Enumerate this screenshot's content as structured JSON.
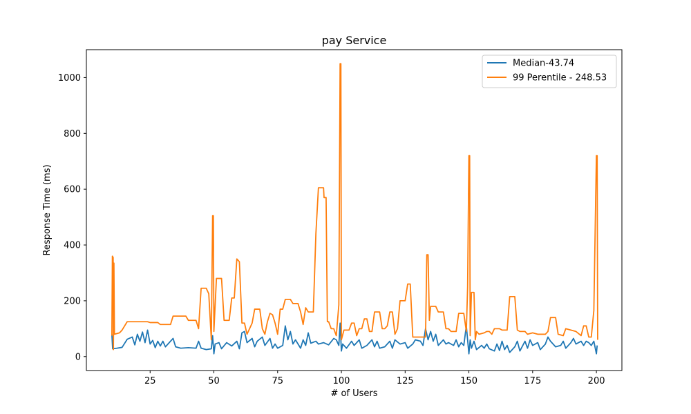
{
  "chart_data": {
    "type": "line",
    "title": "pay Service",
    "xlabel": "# of Users",
    "ylabel": "Response Time (ms)",
    "xlim": [
      0,
      210
    ],
    "ylim": [
      -50,
      1100
    ],
    "xticks": [
      25,
      50,
      75,
      100,
      125,
      150,
      175,
      200
    ],
    "yticks": [
      0,
      200,
      400,
      600,
      800,
      1000
    ],
    "legend_position": "top-right",
    "grid": false,
    "series": [
      {
        "name": "Median-43.74",
        "color": "#1f77b4",
        "points": [
          [
            10,
            80
          ],
          [
            10.3,
            28
          ],
          [
            12,
            30
          ],
          [
            14,
            33
          ],
          [
            16,
            62
          ],
          [
            18,
            70
          ],
          [
            19,
            42
          ],
          [
            20,
            80
          ],
          [
            21,
            55
          ],
          [
            22,
            88
          ],
          [
            23,
            50
          ],
          [
            24,
            95
          ],
          [
            25,
            45
          ],
          [
            26,
            58
          ],
          [
            27,
            32
          ],
          [
            28,
            55
          ],
          [
            29,
            38
          ],
          [
            30,
            55
          ],
          [
            31,
            35
          ],
          [
            33,
            55
          ],
          [
            34,
            65
          ],
          [
            35,
            35
          ],
          [
            37,
            30
          ],
          [
            40,
            32
          ],
          [
            43,
            30
          ],
          [
            44,
            55
          ],
          [
            45,
            30
          ],
          [
            47,
            25
          ],
          [
            49,
            28
          ],
          [
            49.5,
            75
          ],
          [
            50,
            10
          ],
          [
            50.5,
            45
          ],
          [
            52,
            50
          ],
          [
            53,
            28
          ],
          [
            55,
            50
          ],
          [
            57,
            38
          ],
          [
            59,
            55
          ],
          [
            60,
            28
          ],
          [
            61,
            85
          ],
          [
            62,
            90
          ],
          [
            63,
            50
          ],
          [
            65,
            65
          ],
          [
            66,
            35
          ],
          [
            67,
            55
          ],
          [
            69,
            70
          ],
          [
            70,
            40
          ],
          [
            72,
            65
          ],
          [
            73,
            30
          ],
          [
            74,
            45
          ],
          [
            75,
            30
          ],
          [
            77,
            40
          ],
          [
            78,
            110
          ],
          [
            79,
            60
          ],
          [
            80,
            90
          ],
          [
            81,
            45
          ],
          [
            82,
            60
          ],
          [
            84,
            30
          ],
          [
            85,
            60
          ],
          [
            86,
            40
          ],
          [
            87,
            85
          ],
          [
            88,
            48
          ],
          [
            90,
            55
          ],
          [
            91,
            45
          ],
          [
            93,
            50
          ],
          [
            95,
            42
          ],
          [
            97,
            65
          ],
          [
            98,
            60
          ],
          [
            99,
            40
          ],
          [
            99.5,
            120
          ],
          [
            100,
            20
          ],
          [
            100.5,
            45
          ],
          [
            102,
            30
          ],
          [
            104,
            55
          ],
          [
            105,
            40
          ],
          [
            107,
            60
          ],
          [
            108,
            30
          ],
          [
            110,
            40
          ],
          [
            112,
            60
          ],
          [
            113,
            35
          ],
          [
            114,
            55
          ],
          [
            115,
            30
          ],
          [
            117,
            35
          ],
          [
            119,
            55
          ],
          [
            120,
            30
          ],
          [
            121,
            60
          ],
          [
            123,
            45
          ],
          [
            125,
            50
          ],
          [
            126,
            30
          ],
          [
            128,
            45
          ],
          [
            129,
            60
          ],
          [
            131,
            55
          ],
          [
            132,
            40
          ],
          [
            133,
            100
          ],
          [
            134,
            60
          ],
          [
            135,
            90
          ],
          [
            136,
            55
          ],
          [
            137,
            80
          ],
          [
            138,
            40
          ],
          [
            140,
            60
          ],
          [
            141,
            45
          ],
          [
            142,
            50
          ],
          [
            144,
            40
          ],
          [
            145,
            60
          ],
          [
            146,
            35
          ],
          [
            147,
            50
          ],
          [
            148,
            40
          ],
          [
            149,
            110
          ],
          [
            150,
            10
          ],
          [
            150.5,
            60
          ],
          [
            151,
            30
          ],
          [
            152,
            55
          ],
          [
            153,
            25
          ],
          [
            155,
            40
          ],
          [
            156,
            30
          ],
          [
            157,
            45
          ],
          [
            158,
            28
          ],
          [
            160,
            20
          ],
          [
            161,
            45
          ],
          [
            162,
            22
          ],
          [
            163,
            55
          ],
          [
            164,
            25
          ],
          [
            165,
            40
          ],
          [
            166,
            15
          ],
          [
            168,
            35
          ],
          [
            169,
            55
          ],
          [
            170,
            20
          ],
          [
            172,
            55
          ],
          [
            173,
            30
          ],
          [
            174,
            60
          ],
          [
            175,
            40
          ],
          [
            177,
            50
          ],
          [
            178,
            25
          ],
          [
            180,
            45
          ],
          [
            181,
            70
          ],
          [
            182,
            55
          ],
          [
            184,
            35
          ],
          [
            186,
            40
          ],
          [
            187,
            55
          ],
          [
            188,
            30
          ],
          [
            190,
            50
          ],
          [
            191,
            65
          ],
          [
            192,
            45
          ],
          [
            194,
            55
          ],
          [
            195,
            40
          ],
          [
            196,
            55
          ],
          [
            197,
            50
          ],
          [
            198,
            40
          ],
          [
            199,
            55
          ],
          [
            200,
            10
          ],
          [
            200.3,
            40
          ]
        ]
      },
      {
        "name": "99 Perentile - 248.53",
        "color": "#ff7f0e",
        "points": [
          [
            10,
            75
          ],
          [
            10.2,
            360
          ],
          [
            10.5,
            355
          ],
          [
            10.6,
            25
          ],
          [
            10.8,
            335
          ],
          [
            11,
            80
          ],
          [
            13,
            85
          ],
          [
            14,
            95
          ],
          [
            15,
            110
          ],
          [
            16,
            125
          ],
          [
            20,
            125
          ],
          [
            24,
            125
          ],
          [
            25,
            122
          ],
          [
            28,
            122
          ],
          [
            29,
            115
          ],
          [
            33,
            115
          ],
          [
            34,
            145
          ],
          [
            37,
            145
          ],
          [
            39,
            145
          ],
          [
            40,
            130
          ],
          [
            43,
            130
          ],
          [
            44,
            100
          ],
          [
            45,
            245
          ],
          [
            47,
            245
          ],
          [
            48,
            225
          ],
          [
            49,
            60
          ],
          [
            49.5,
            505
          ],
          [
            49.8,
            505
          ],
          [
            50,
            90
          ],
          [
            51,
            280
          ],
          [
            53,
            280
          ],
          [
            54,
            130
          ],
          [
            56,
            130
          ],
          [
            57,
            210
          ],
          [
            58,
            210
          ],
          [
            59,
            350
          ],
          [
            60,
            340
          ],
          [
            61,
            120
          ],
          [
            62,
            120
          ],
          [
            63,
            80
          ],
          [
            65,
            120
          ],
          [
            66,
            170
          ],
          [
            68,
            170
          ],
          [
            69,
            100
          ],
          [
            70,
            80
          ],
          [
            71,
            125
          ],
          [
            72,
            155
          ],
          [
            73,
            150
          ],
          [
            74,
            120
          ],
          [
            75,
            80
          ],
          [
            76,
            170
          ],
          [
            77,
            170
          ],
          [
            78,
            205
          ],
          [
            80,
            205
          ],
          [
            81,
            190
          ],
          [
            83,
            190
          ],
          [
            84,
            160
          ],
          [
            85,
            115
          ],
          [
            86,
            175
          ],
          [
            87,
            160
          ],
          [
            88,
            160
          ],
          [
            89,
            160
          ],
          [
            90,
            440
          ],
          [
            91,
            605
          ],
          [
            93,
            605
          ],
          [
            93.2,
            570
          ],
          [
            94,
            570
          ],
          [
            94.5,
            125
          ],
          [
            95,
            125
          ],
          [
            96,
            100
          ],
          [
            97,
            100
          ],
          [
            98,
            75
          ],
          [
            99,
            185
          ],
          [
            99.5,
            1050
          ],
          [
            99.8,
            1050
          ],
          [
            100,
            60
          ],
          [
            101,
            95
          ],
          [
            103,
            95
          ],
          [
            104,
            120
          ],
          [
            105,
            120
          ],
          [
            106,
            75
          ],
          [
            107,
            100
          ],
          [
            108,
            100
          ],
          [
            109,
            135
          ],
          [
            110,
            135
          ],
          [
            111,
            90
          ],
          [
            112,
            90
          ],
          [
            113,
            160
          ],
          [
            115,
            160
          ],
          [
            116,
            100
          ],
          [
            117,
            100
          ],
          [
            118,
            110
          ],
          [
            119,
            160
          ],
          [
            120,
            160
          ],
          [
            121,
            80
          ],
          [
            122,
            100
          ],
          [
            123,
            200
          ],
          [
            125,
            200
          ],
          [
            126,
            260
          ],
          [
            127,
            260
          ],
          [
            128,
            70
          ],
          [
            133,
            70
          ],
          [
            133.5,
            365
          ],
          [
            134,
            365
          ],
          [
            134.5,
            130
          ],
          [
            135,
            180
          ],
          [
            137,
            180
          ],
          [
            138,
            160
          ],
          [
            140,
            160
          ],
          [
            141,
            100
          ],
          [
            142,
            100
          ],
          [
            143,
            90
          ],
          [
            145,
            90
          ],
          [
            146,
            155
          ],
          [
            148,
            155
          ],
          [
            149,
            90
          ],
          [
            149.5,
            250
          ],
          [
            150,
            720
          ],
          [
            150.3,
            720
          ],
          [
            150.5,
            75
          ],
          [
            151,
            230
          ],
          [
            152,
            230
          ],
          [
            152.5,
            60
          ],
          [
            153,
            90
          ],
          [
            154,
            80
          ],
          [
            156,
            85
          ],
          [
            157,
            90
          ],
          [
            158,
            90
          ],
          [
            159,
            80
          ],
          [
            160,
            100
          ],
          [
            162,
            100
          ],
          [
            163,
            95
          ],
          [
            165,
            95
          ],
          [
            166,
            215
          ],
          [
            168,
            215
          ],
          [
            169,
            95
          ],
          [
            170,
            90
          ],
          [
            172,
            90
          ],
          [
            173,
            80
          ],
          [
            175,
            85
          ],
          [
            177,
            80
          ],
          [
            180,
            80
          ],
          [
            181,
            90
          ],
          [
            182,
            140
          ],
          [
            184,
            140
          ],
          [
            185,
            80
          ],
          [
            187,
            75
          ],
          [
            188,
            100
          ],
          [
            190,
            95
          ],
          [
            192,
            90
          ],
          [
            194,
            75
          ],
          [
            195,
            110
          ],
          [
            196,
            110
          ],
          [
            197,
            70
          ],
          [
            198,
            70
          ],
          [
            199,
            165
          ],
          [
            200,
            720
          ],
          [
            200.3,
            720
          ],
          [
            200.5,
            60
          ]
        ]
      }
    ]
  }
}
